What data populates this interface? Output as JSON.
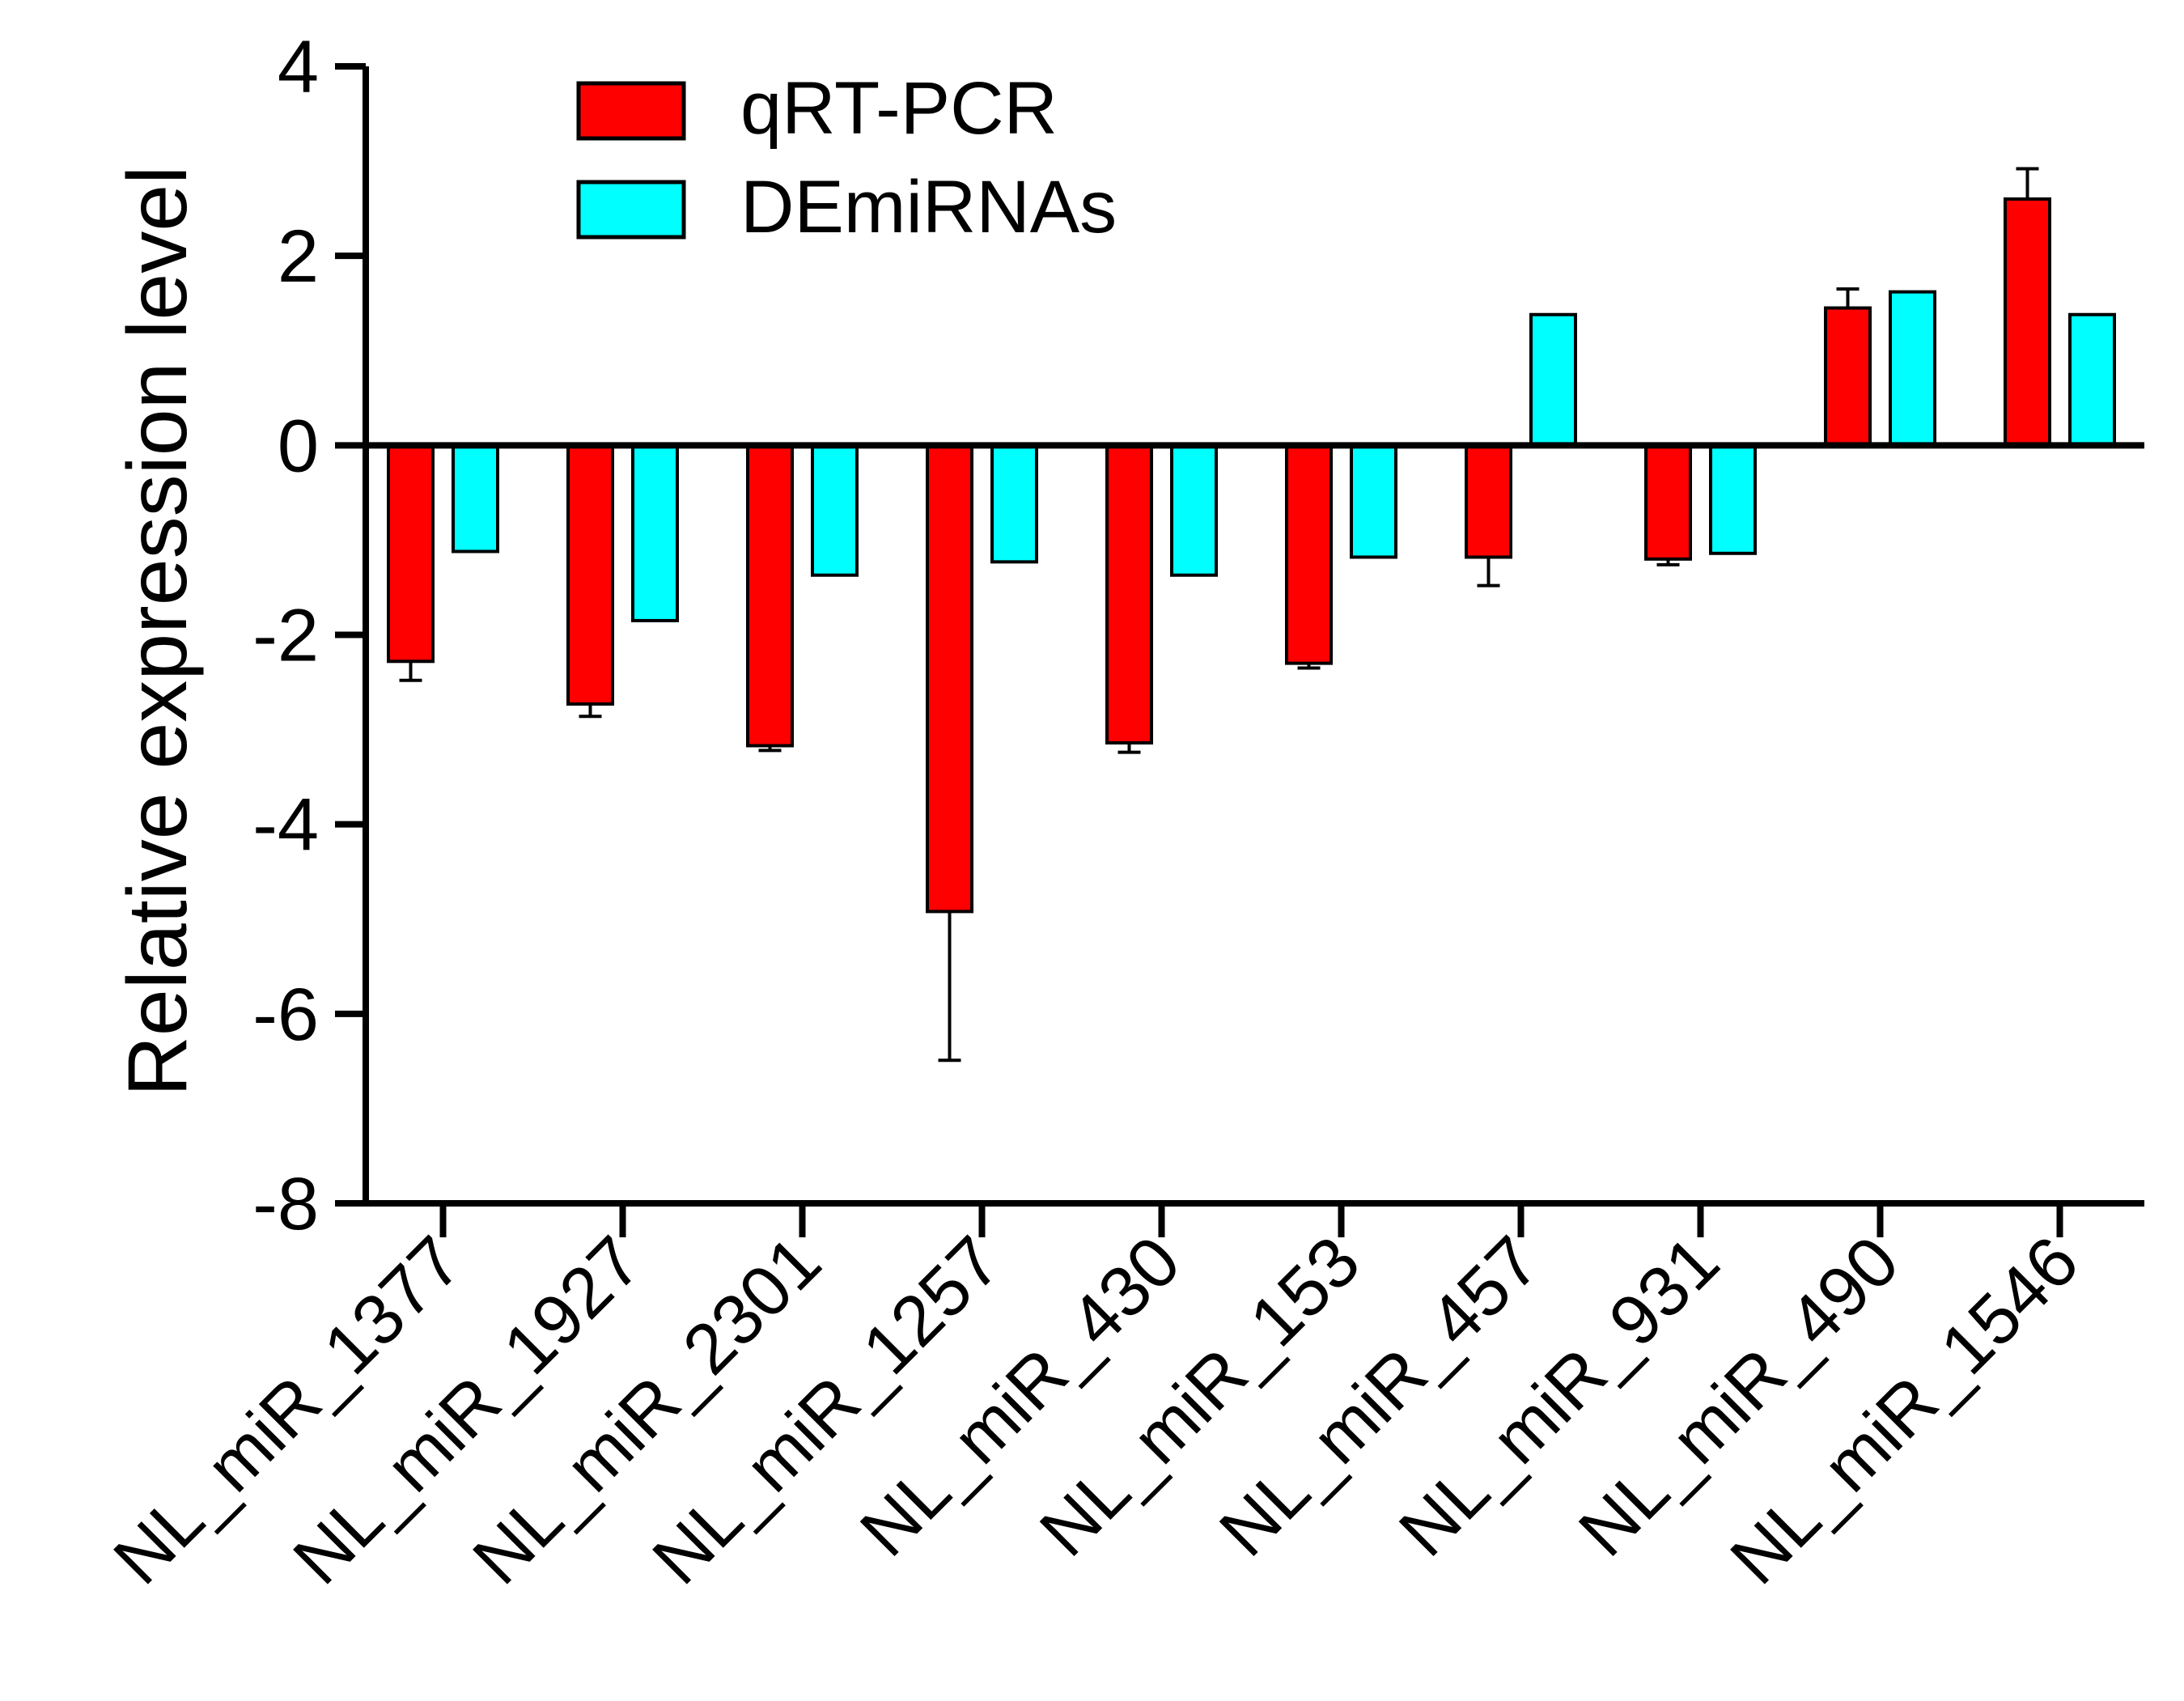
{
  "chart_data": {
    "type": "bar",
    "title": "",
    "xlabel": "",
    "ylabel": "Relative expression level",
    "ylim": [
      -8,
      4
    ],
    "yticks": [
      4,
      2,
      0,
      -2,
      -4,
      -6,
      -8
    ],
    "ytick_labels": [
      "4",
      "2",
      "0",
      "-2",
      "-4",
      "-6",
      "-8"
    ],
    "grid": false,
    "legend_position": "top-left",
    "categories": [
      "NL_miR_1377",
      "NL_miR_1927",
      "NL_miR_2301",
      "NL_miR_1257",
      "NL_miR_430",
      "NL_miR_153",
      "NL_miR_457",
      "NL_miR_931",
      "NL_miR_490",
      "NL_miR_1546"
    ],
    "series": [
      {
        "name": "qRT-PCR",
        "color": "#ff0000",
        "values": [
          -2.28,
          -2.73,
          -3.17,
          -4.92,
          -3.14,
          -2.3,
          -1.18,
          -1.2,
          1.45,
          2.6
        ],
        "errors": [
          0.2,
          0.13,
          0.05,
          1.57,
          0.1,
          0.05,
          0.3,
          0.06,
          0.2,
          0.32
        ]
      },
      {
        "name": "DEmiRNAs",
        "color": "#00ffff",
        "values": [
          -1.12,
          -1.85,
          -1.37,
          -1.23,
          -1.37,
          -1.18,
          1.38,
          -1.14,
          1.62,
          1.38
        ]
      }
    ]
  }
}
